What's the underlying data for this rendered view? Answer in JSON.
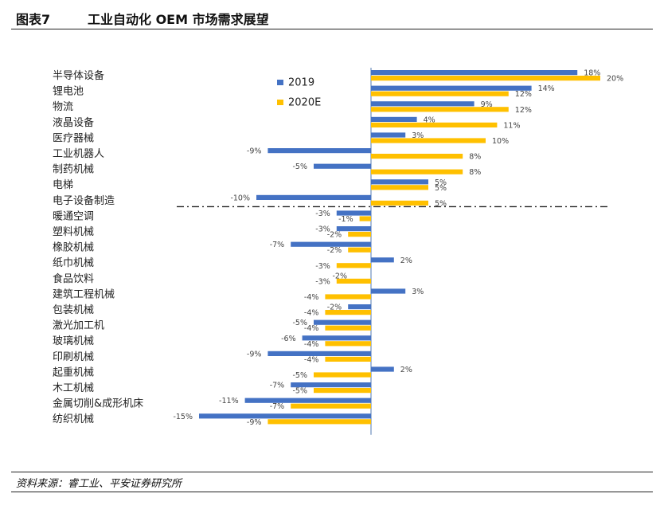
{
  "figure": {
    "label": "图表7",
    "title": "工业自动化 OEM 市场需求展望",
    "source": "资料来源：睿工业、平安证券研究所"
  },
  "chart_data": {
    "type": "bar",
    "orientation": "horizontal",
    "categories": [
      "半导体设备",
      "锂电池",
      "物流",
      "液晶设备",
      "医疗器械",
      "工业机器人",
      "制药机械",
      "电梯",
      "电子设备制造",
      "暖通空调",
      "塑料机械",
      "橡胶机械",
      "纸巾机械",
      "食品饮料",
      "建筑工程机械",
      "包装机械",
      "激光加工机",
      "玻璃机械",
      "印刷机械",
      "起重机械",
      "木工机械",
      "金属切削&成形机床",
      "纺织机械"
    ],
    "series": [
      {
        "name": "2019",
        "color": "#4472C4",
        "values": [
          18,
          14,
          9,
          4,
          3,
          -9,
          -5,
          5,
          -10,
          -3,
          -3,
          -7,
          2,
          null,
          3,
          -2,
          -5,
          -6,
          -9,
          2,
          -7,
          -11,
          -15
        ],
        "labels": [
          "18%",
          "14%",
          "9%",
          "4%",
          "3%",
          "-9%",
          "-5%",
          "5%",
          "-10%",
          "-3%",
          "-3%",
          "-7%",
          "2%",
          "",
          "3%",
          "-2%",
          "-5%",
          "-6%",
          "-9%",
          "2%",
          "-7%",
          "-11%",
          "-15%"
        ]
      },
      {
        "name": "2020E",
        "color": "#FFC000",
        "values": [
          20,
          12,
          12,
          11,
          10,
          8,
          8,
          5,
          5,
          -1,
          -2,
          -2,
          -3,
          -3,
          -4,
          -4,
          -4,
          -4,
          -4,
          -5,
          -5,
          -7,
          -9
        ],
        "labels": [
          "20%",
          "12%",
          "12%",
          "11%",
          "10%",
          "8%",
          "8%",
          "5%",
          "5%",
          "-1%",
          "-2%",
          "-2%",
          "-3%",
          "-3%",
          "-4%",
          "-4%",
          "-4%",
          "-4%",
          "-4%",
          "-5%",
          "-5%",
          "-7%",
          "-9%"
        ]
      }
    ],
    "extra_labels": [
      {
        "category": "食品饮料",
        "series": "2019",
        "text": "-2%"
      }
    ],
    "divider_after_category": "电子设备制造",
    "legend": "top-left"
  }
}
